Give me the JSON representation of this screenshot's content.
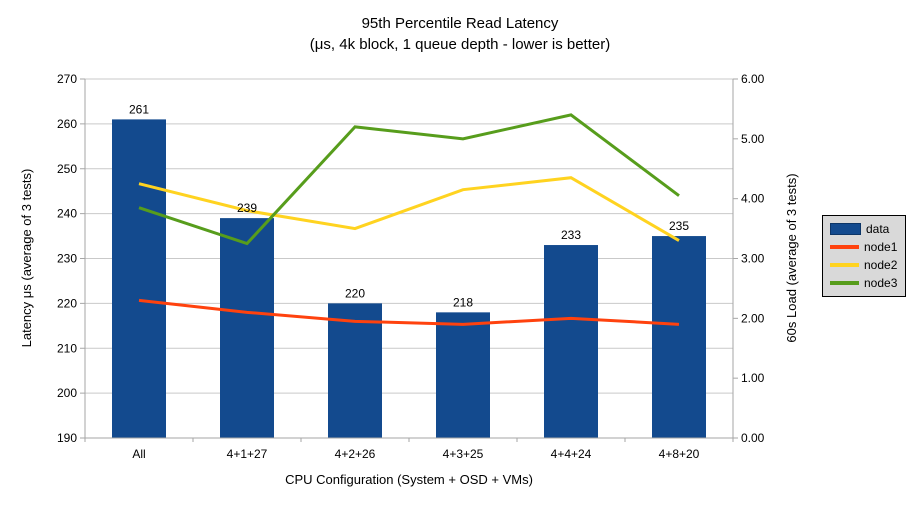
{
  "title": "95th Percentile Read Latency",
  "subtitle": "(μs, 4k block, 1 queue depth - lower is better)",
  "chart_data": {
    "type": "bar",
    "combo": "bar+line",
    "title": "95th Percentile Read Latency",
    "subtitle": "(μs, 4k block, 1 queue depth - lower is better)",
    "categories": [
      "All",
      "4+1+27",
      "4+2+26",
      "4+3+25",
      "4+4+24",
      "4+8+20"
    ],
    "bar_series": {
      "name": "data",
      "axis": "left",
      "color": "#134a8e",
      "values": [
        261,
        239,
        220,
        218,
        233,
        235
      ],
      "data_labels": [
        "261",
        "239",
        "220",
        "218",
        "233",
        "235"
      ]
    },
    "line_series": [
      {
        "name": "node1",
        "axis": "right",
        "color": "#ff420e",
        "values": [
          2.3,
          2.1,
          1.95,
          1.9,
          2.0,
          1.9
        ]
      },
      {
        "name": "node2",
        "axis": "right",
        "color": "#ffd320",
        "values": [
          4.25,
          3.8,
          3.5,
          4.15,
          4.35,
          3.3
        ]
      },
      {
        "name": "node3",
        "axis": "right",
        "color": "#579d1c",
        "values": [
          3.85,
          3.25,
          5.2,
          5.0,
          5.4,
          4.05
        ]
      }
    ],
    "left_axis": {
      "label": "Latency μs (average of 3 tests)",
      "min": 190,
      "max": 270,
      "step": 10,
      "tick_labels": [
        "190",
        "200",
        "210",
        "220",
        "230",
        "240",
        "250",
        "260",
        "270"
      ]
    },
    "right_axis": {
      "label": "60s Load (average of 3 tests)",
      "min": 0,
      "max": 6,
      "step": 1,
      "tick_labels": [
        "0.00",
        "1.00",
        "2.00",
        "3.00",
        "4.00",
        "5.00",
        "6.00"
      ]
    },
    "x_axis": {
      "label": "CPU Configuration (System + OSD + VMs)"
    },
    "legend": {
      "position": "right",
      "entries": [
        {
          "label": "data",
          "marker": "bar",
          "color": "#134a8e"
        },
        {
          "label": "node1",
          "marker": "line",
          "color": "#ff420e"
        },
        {
          "label": "node2",
          "marker": "line",
          "color": "#ffd320"
        },
        {
          "label": "node3",
          "marker": "line",
          "color": "#579d1c"
        }
      ]
    },
    "grid": true
  },
  "colors": {
    "background": "#ffffff",
    "gridline": "#c9c9c9",
    "axis": "#a6a6a6",
    "legend_bg": "#d9d9d9",
    "legend_border": "#000000",
    "text": "#000000"
  }
}
